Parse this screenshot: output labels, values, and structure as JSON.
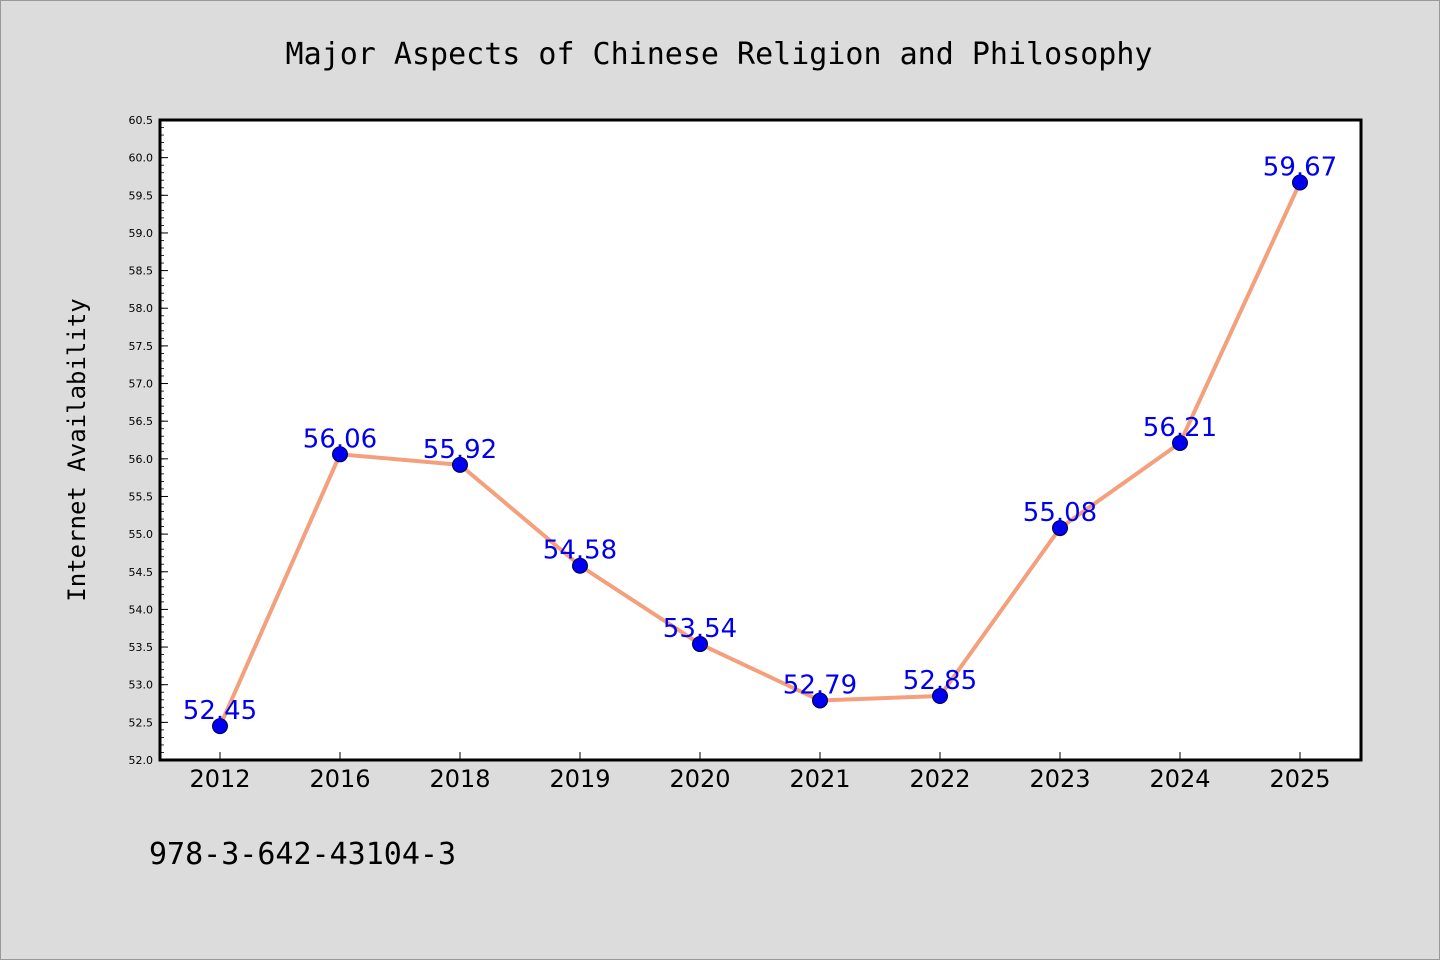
{
  "chart_data": {
    "type": "line",
    "title": "Major Aspects of Chinese Religion and Philosophy",
    "xlabel": "",
    "ylabel": "Internet Availability",
    "categories": [
      "2012",
      "2016",
      "2018",
      "2019",
      "2020",
      "2021",
      "2022",
      "2023",
      "2024",
      "2025"
    ],
    "series": [
      {
        "values": [
          52.45,
          56.06,
          55.92,
          54.58,
          53.54,
          52.79,
          52.85,
          55.08,
          56.21,
          59.67
        ],
        "labels": [
          "52.45",
          "56.06",
          "55.92",
          "54.58",
          "53.54",
          "52.79",
          "52.85",
          "55.08",
          "56.21",
          "59.67"
        ],
        "line_color": "#f4a07c",
        "marker_color": "#0000ee",
        "label_color": "#0000ee"
      }
    ],
    "ylim": [
      52.0,
      60.5
    ],
    "yticks": [
      "52.0",
      "52.5",
      "53.0",
      "53.5",
      "54.0",
      "54.5",
      "55.0",
      "55.5",
      "56.0",
      "56.5",
      "57.0",
      "57.5",
      "58.0",
      "58.5",
      "59.0",
      "59.5",
      "60.0",
      "60.5"
    ],
    "grid": false,
    "legend": "none",
    "annotations": [
      "978-3-642-43104-3"
    ]
  },
  "colors": {
    "figure_background": "#dcdcdc",
    "plot_background": "#ffffff",
    "axes_frame": "#000000"
  }
}
